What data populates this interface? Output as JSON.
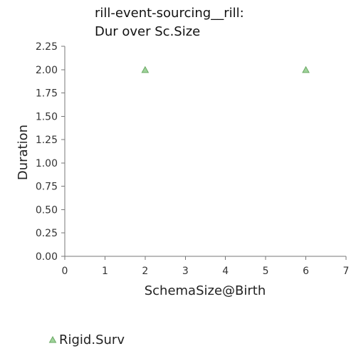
{
  "chart_data": {
    "type": "scatter",
    "title_lines": [
      "rill-event-sourcing__rill:",
      "Dur over Sc.Size"
    ],
    "xlabel": "SchemaSize@Birth",
    "ylabel": "Duration",
    "xlim": [
      0,
      7
    ],
    "ylim": [
      0,
      2.25
    ],
    "x_ticks": [
      "0",
      "1",
      "2",
      "3",
      "4",
      "5",
      "6",
      "7"
    ],
    "y_ticks": [
      "0.00",
      "0.25",
      "0.50",
      "0.75",
      "1.00",
      "1.25",
      "1.50",
      "1.75",
      "2.00",
      "2.25"
    ],
    "grid": false,
    "legend_position": "bottom-left",
    "series": [
      {
        "name": "Rigid.Surv",
        "marker": "triangle",
        "color": "#9fd39a",
        "stroke": "#6aa864",
        "points": [
          {
            "x": 2,
            "y": 2.0
          },
          {
            "x": 6,
            "y": 2.0
          }
        ]
      }
    ]
  }
}
